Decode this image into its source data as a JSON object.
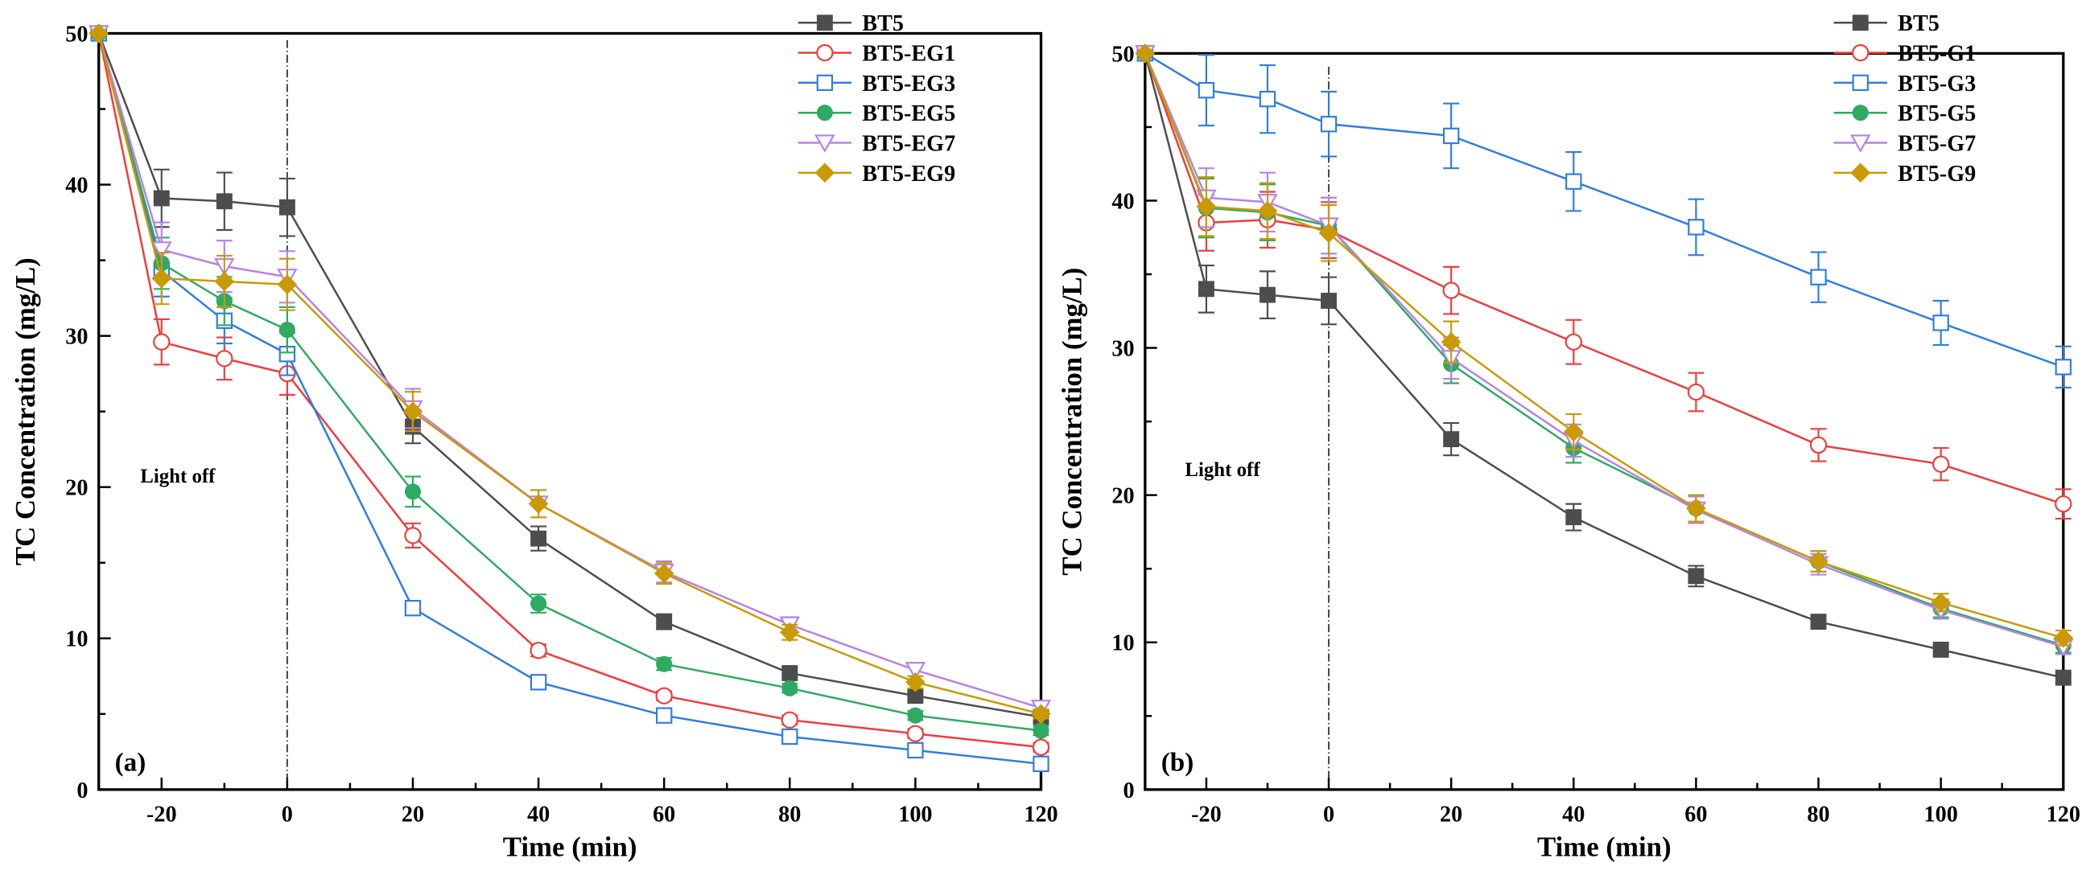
{
  "chart_data": [
    {
      "type": "line",
      "panel_label": "(a)",
      "annotation": "Light off",
      "xlabel": "Time (min)",
      "ylabel": "TC Concentration (mg/L)",
      "xlim": [
        -30,
        120
      ],
      "ylim": [
        0,
        50
      ],
      "xticks": [
        -20,
        0,
        20,
        40,
        60,
        80,
        100,
        120
      ],
      "yticks": [
        0,
        10,
        20,
        30,
        40,
        50
      ],
      "legend_position": "top-right",
      "x": [
        -30,
        -20,
        -10,
        0,
        20,
        40,
        60,
        80,
        100,
        120
      ],
      "series": [
        {
          "name": "BT5",
          "color": "#4d4d4d",
          "marker": "square-filled",
          "values": [
            50,
            39.1,
            38.9,
            38.5,
            24.0,
            16.6,
            11.1,
            7.7,
            6.2,
            4.8
          ],
          "errors": [
            0,
            1.9,
            1.9,
            1.9,
            1.1,
            0.8,
            0.5,
            0.4,
            0.3,
            0.3
          ]
        },
        {
          "name": "BT5-EG1",
          "color": "#f03c3c",
          "marker": "circle-open",
          "values": [
            50,
            29.6,
            28.5,
            27.5,
            16.8,
            9.2,
            6.2,
            4.6,
            3.7,
            2.8
          ],
          "errors": [
            0,
            1.5,
            1.4,
            1.4,
            0.8,
            0.4,
            0.3,
            0.3,
            0.3,
            0.3
          ]
        },
        {
          "name": "BT5-EG3",
          "color": "#2f7de1",
          "marker": "square-open",
          "values": [
            50,
            34.3,
            31.0,
            28.8,
            12.0,
            7.1,
            4.9,
            3.5,
            2.6,
            1.7
          ],
          "errors": [
            0,
            1.7,
            1.5,
            1.4,
            0.4,
            0.3,
            0.3,
            0.3,
            0.3,
            0.3
          ]
        },
        {
          "name": "BT5-EG5",
          "color": "#2eaa62",
          "marker": "circle-filled",
          "values": [
            50,
            34.8,
            32.3,
            30.4,
            19.7,
            12.3,
            8.3,
            6.7,
            4.9,
            3.9
          ],
          "errors": [
            0,
            1.7,
            1.6,
            1.5,
            1.0,
            0.6,
            0.4,
            0.3,
            0.3,
            0.3
          ]
        },
        {
          "name": "BT5-EG7",
          "color": "#b583e8",
          "marker": "triangle-down-open",
          "values": [
            50,
            35.7,
            34.6,
            33.9,
            25.2,
            18.9,
            14.4,
            10.9,
            7.9,
            5.4
          ],
          "errors": [
            0,
            1.8,
            1.7,
            1.7,
            1.3,
            0.9,
            0.7,
            0.5,
            0.4,
            0.3
          ]
        },
        {
          "name": "BT5-EG9",
          "color": "#c99a06",
          "marker": "diamond-filled",
          "values": [
            50,
            33.8,
            33.6,
            33.4,
            25.0,
            18.9,
            14.3,
            10.4,
            7.1,
            5.0
          ],
          "errors": [
            0,
            1.7,
            1.7,
            1.7,
            1.3,
            0.9,
            0.7,
            0.5,
            0.4,
            0.3
          ]
        }
      ]
    },
    {
      "type": "line",
      "panel_label": "(b)",
      "annotation": "Light off",
      "xlabel": "Time (min)",
      "ylabel": "TC Concentration (mg/L)",
      "xlim": [
        -30,
        120
      ],
      "ylim": [
        0,
        50
      ],
      "xticks": [
        -20,
        0,
        20,
        40,
        60,
        80,
        100,
        120
      ],
      "yticks": [
        0,
        10,
        20,
        30,
        40,
        50
      ],
      "legend_position": "top-right",
      "x": [
        -30,
        -20,
        -10,
        0,
        20,
        40,
        60,
        80,
        100,
        120
      ],
      "series": [
        {
          "name": "BT5",
          "color": "#4d4d4d",
          "marker": "square-filled",
          "values": [
            50,
            34.0,
            33.6,
            33.2,
            23.8,
            18.5,
            14.5,
            11.4,
            9.5,
            7.6
          ],
          "errors": [
            0,
            1.6,
            1.6,
            1.6,
            1.1,
            0.9,
            0.7,
            0.4,
            0.3,
            0.3
          ]
        },
        {
          "name": "BT5-G1",
          "color": "#f03c3c",
          "marker": "circle-open",
          "values": [
            50,
            38.5,
            38.7,
            38.0,
            33.9,
            30.4,
            27.0,
            23.4,
            22.1,
            19.4
          ],
          "errors": [
            0,
            1.9,
            1.9,
            1.9,
            1.6,
            1.5,
            1.3,
            1.1,
            1.1,
            1.0
          ]
        },
        {
          "name": "BT5-G3",
          "color": "#2f7de1",
          "marker": "square-open",
          "values": [
            50,
            47.5,
            46.9,
            45.2,
            44.4,
            41.3,
            38.2,
            34.8,
            31.7,
            28.7
          ],
          "errors": [
            0,
            2.4,
            2.3,
            2.2,
            2.2,
            2.0,
            1.9,
            1.7,
            1.5,
            1.4
          ]
        },
        {
          "name": "BT5-G5",
          "color": "#2eaa62",
          "marker": "circle-filled",
          "values": [
            50,
            39.5,
            39.2,
            38.3,
            28.9,
            23.2,
            19.1,
            15.5,
            12.3,
            9.8
          ],
          "errors": [
            0,
            2.0,
            1.9,
            1.9,
            1.3,
            1.0,
            0.9,
            0.7,
            0.6,
            0.5
          ]
        },
        {
          "name": "BT5-G7",
          "color": "#b583e8",
          "marker": "triangle-down-open",
          "values": [
            50,
            40.2,
            39.9,
            38.3,
            29.3,
            23.7,
            19.0,
            15.3,
            12.2,
            9.7
          ],
          "errors": [
            0,
            2.0,
            2.0,
            1.9,
            1.4,
            1.1,
            0.9,
            0.7,
            0.6,
            0.5
          ]
        },
        {
          "name": "BT5-G9",
          "color": "#c99a06",
          "marker": "diamond-filled",
          "values": [
            50,
            39.6,
            39.3,
            37.8,
            30.4,
            24.3,
            19.1,
            15.5,
            12.7,
            10.3
          ],
          "errors": [
            0,
            2.0,
            1.9,
            1.9,
            1.4,
            1.2,
            0.9,
            0.7,
            0.6,
            0.5
          ]
        }
      ]
    }
  ]
}
